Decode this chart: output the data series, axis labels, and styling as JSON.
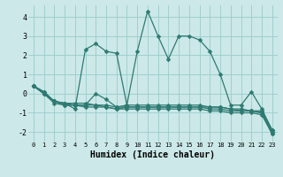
{
  "xlabel": "Humidex (Indice chaleur)",
  "background_color": "#cce8e8",
  "grid_color": "#99cccc",
  "line_color": "#2d7a72",
  "xlim": [
    -0.5,
    23.5
  ],
  "ylim": [
    -2.5,
    4.6
  ],
  "xticks": [
    0,
    1,
    2,
    3,
    4,
    5,
    6,
    7,
    8,
    9,
    10,
    11,
    12,
    13,
    14,
    15,
    16,
    17,
    18,
    19,
    20,
    21,
    22,
    23
  ],
  "yticks": [
    -2,
    -1,
    0,
    1,
    2,
    3,
    4
  ],
  "series": [
    [
      0.4,
      0.1,
      -0.4,
      -0.5,
      -0.8,
      2.3,
      2.6,
      2.2,
      2.1,
      -0.6,
      2.2,
      4.3,
      3.0,
      1.8,
      3.0,
      3.0,
      2.8,
      2.2,
      1.0,
      -0.6,
      -0.6,
      0.1,
      -0.8,
      -1.9
    ],
    [
      0.4,
      0.0,
      -0.4,
      -0.5,
      -0.6,
      -0.6,
      0.0,
      -0.3,
      -0.7,
      -0.6,
      -0.6,
      -0.6,
      -0.6,
      -0.6,
      -0.6,
      -0.6,
      -0.6,
      -0.7,
      -0.7,
      -0.8,
      -0.8,
      -0.9,
      -0.9,
      -1.9
    ],
    [
      0.4,
      0.0,
      -0.4,
      -0.6,
      -0.6,
      -0.6,
      -0.6,
      -0.7,
      -0.8,
      -0.7,
      -0.7,
      -0.7,
      -0.7,
      -0.7,
      -0.7,
      -0.7,
      -0.7,
      -0.8,
      -0.8,
      -0.9,
      -0.9,
      -0.9,
      -1.0,
      -2.0
    ],
    [
      0.4,
      0.0,
      -0.5,
      -0.6,
      -0.6,
      -0.7,
      -0.7,
      -0.7,
      -0.8,
      -0.8,
      -0.8,
      -0.8,
      -0.8,
      -0.8,
      -0.8,
      -0.8,
      -0.8,
      -0.9,
      -0.9,
      -1.0,
      -1.0,
      -1.0,
      -1.1,
      -2.1
    ],
    [
      0.4,
      0.1,
      -0.4,
      -0.5,
      -0.5,
      -0.5,
      -0.6,
      -0.6,
      -0.7,
      -0.7,
      -0.7,
      -0.7,
      -0.7,
      -0.7,
      -0.7,
      -0.7,
      -0.7,
      -0.7,
      -0.7,
      -0.8,
      -0.9,
      -0.9,
      -1.0,
      -2.1
    ]
  ],
  "marker": "D",
  "markersize": 2.5,
  "linewidth": 0.9
}
